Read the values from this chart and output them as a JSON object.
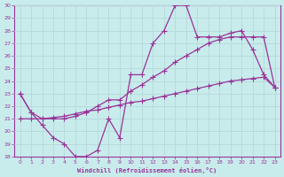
{
  "xlabel": "Windchill (Refroidissement éolien,°C)",
  "xlim": [
    -0.5,
    23.5
  ],
  "ylim": [
    18,
    30
  ],
  "yticks": [
    18,
    19,
    20,
    21,
    22,
    23,
    24,
    25,
    26,
    27,
    28,
    29,
    30
  ],
  "xticks": [
    0,
    1,
    2,
    3,
    4,
    5,
    6,
    7,
    8,
    9,
    10,
    11,
    12,
    13,
    14,
    15,
    16,
    17,
    18,
    19,
    20,
    21,
    22,
    23
  ],
  "bg_color": "#c8ecec",
  "grid_color": "#b8dada",
  "line_color": "#993399",
  "curve1_x": [
    0,
    1,
    2,
    3,
    4,
    5,
    6,
    7,
    8,
    9,
    10,
    11,
    12,
    13,
    14,
    15,
    16,
    17,
    18,
    19,
    20,
    21,
    22,
    23
  ],
  "curve1_y": [
    23,
    21.5,
    20.5,
    19.5,
    19,
    18,
    18,
    18.5,
    21,
    19.5,
    24.5,
    24.5,
    27,
    28,
    30,
    30,
    27.5,
    27.5,
    27.5,
    27.8,
    28,
    26.5,
    24.5,
    23.5
  ],
  "curve2_x": [
    0,
    1,
    2,
    3,
    4,
    5,
    6,
    7,
    8,
    9,
    10,
    11,
    12,
    13,
    14,
    15,
    16,
    17,
    18,
    19,
    20,
    21,
    22,
    23
  ],
  "curve2_y": [
    23,
    21.5,
    21.0,
    21.0,
    21.0,
    21.2,
    21.5,
    22.0,
    22.5,
    22.5,
    23.2,
    23.7,
    24.3,
    24.8,
    25.5,
    26.0,
    26.5,
    27.0,
    27.3,
    27.5,
    27.5,
    27.5,
    27.5,
    23.5
  ],
  "curve3_x": [
    0,
    1,
    2,
    3,
    4,
    5,
    6,
    7,
    8,
    9,
    10,
    11,
    12,
    13,
    14,
    15,
    16,
    17,
    18,
    19,
    20,
    21,
    22,
    23
  ],
  "curve3_y": [
    21.0,
    21.0,
    21.0,
    21.1,
    21.2,
    21.4,
    21.6,
    21.7,
    21.9,
    22.1,
    22.3,
    22.4,
    22.6,
    22.8,
    23.0,
    23.2,
    23.4,
    23.6,
    23.8,
    24.0,
    24.1,
    24.2,
    24.3,
    23.5
  ]
}
